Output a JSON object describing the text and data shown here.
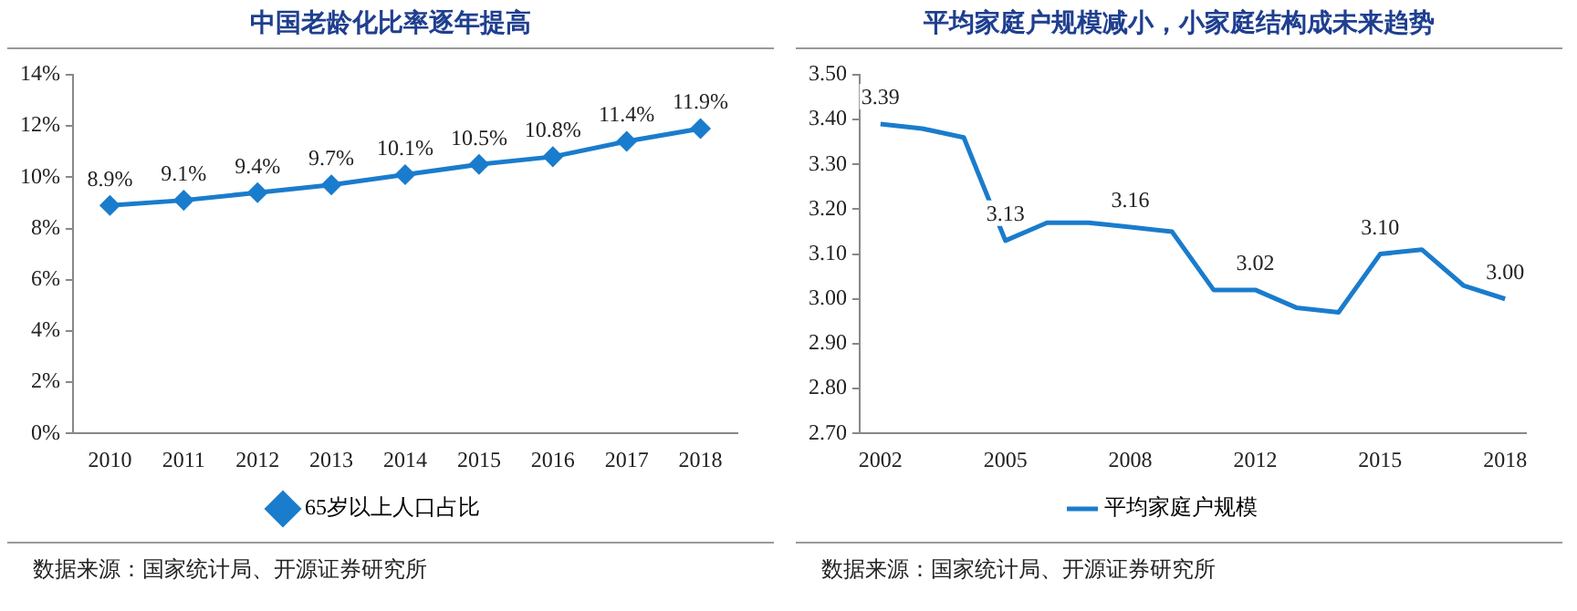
{
  "chart_data": [
    {
      "type": "line",
      "title": "中国老龄化比率逐年提高",
      "categories": [
        "2010",
        "2011",
        "2012",
        "2013",
        "2014",
        "2015",
        "2016",
        "2017",
        "2018"
      ],
      "series": [
        {
          "name": "65岁以上人口占比",
          "color": "#1a7ccc",
          "values": [
            8.9,
            9.1,
            9.4,
            9.7,
            10.1,
            10.5,
            10.8,
            11.4,
            11.9
          ],
          "value_labels": [
            "8.9%",
            "9.1%",
            "9.4%",
            "9.7%",
            "10.1%",
            "10.5%",
            "10.8%",
            "11.4%",
            "11.9%"
          ]
        }
      ],
      "ylim": [
        0,
        14
      ],
      "yticks": [
        {
          "value": 0,
          "label": "0%"
        },
        {
          "value": 2,
          "label": "2%"
        },
        {
          "value": 4,
          "label": "4%"
        },
        {
          "value": 6,
          "label": "6%"
        },
        {
          "value": 8,
          "label": "8%"
        },
        {
          "value": 10,
          "label": "10%"
        },
        {
          "value": 12,
          "label": "12%"
        },
        {
          "value": 14,
          "label": "14%"
        }
      ],
      "marker": "diamond",
      "legend": "bottom",
      "grid": false,
      "annotations": [
        "数据来源：国家统计局、开源证券研究所"
      ]
    },
    {
      "type": "line",
      "title": "平均家庭户规模减小，小家庭结构成未来趋势",
      "categories": [
        "2002",
        null,
        null,
        "2005",
        null,
        null,
        "2008",
        null,
        null,
        "2012",
        null,
        null,
        "2015",
        null,
        null,
        "2018"
      ],
      "series": [
        {
          "name": "平均家庭户规模",
          "color": "#1a7ccc",
          "values": [
            3.39,
            3.38,
            3.36,
            3.13,
            3.17,
            3.17,
            3.16,
            3.15,
            3.02,
            3.02,
            2.98,
            2.97,
            3.1,
            3.11,
            3.03,
            3.0
          ],
          "value_labels": [
            "3.39",
            null,
            null,
            "3.13",
            null,
            null,
            "3.16",
            null,
            null,
            "3.02",
            null,
            null,
            "3.10",
            null,
            null,
            "3.00"
          ]
        }
      ],
      "ylim": [
        2.7,
        3.5
      ],
      "yticks": [
        {
          "value": 2.7,
          "label": "2.70"
        },
        {
          "value": 2.8,
          "label": "2.80"
        },
        {
          "value": 2.9,
          "label": "2.90"
        },
        {
          "value": 3.0,
          "label": "3.00"
        },
        {
          "value": 3.1,
          "label": "3.10"
        },
        {
          "value": 3.2,
          "label": "3.20"
        },
        {
          "value": 3.3,
          "label": "3.30"
        },
        {
          "value": 3.4,
          "label": "3.40"
        },
        {
          "value": 3.5,
          "label": "3.50"
        }
      ],
      "marker": "none",
      "legend": "bottom",
      "grid": false,
      "annotations": [
        "数据来源：国家统计局、开源证券研究所"
      ]
    }
  ]
}
